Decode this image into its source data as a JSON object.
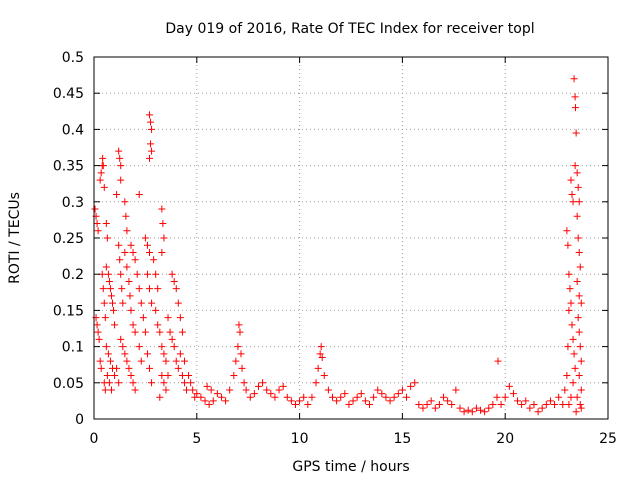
{
  "chart_data": {
    "type": "scatter",
    "title": "Day 019 of 2016, Rate Of TEC Index for receiver topl",
    "xlabel": "GPS time / hours",
    "ylabel": "ROTI / TECUs",
    "xlim": [
      0,
      25
    ],
    "ylim": [
      0,
      0.5
    ],
    "xticks": [
      0,
      5,
      10,
      15,
      20,
      25
    ],
    "yticks": [
      0,
      0.05,
      0.1,
      0.15,
      0.2,
      0.25,
      0.3,
      0.35,
      0.4,
      0.45,
      0.5
    ],
    "grid": true,
    "marker": "plus",
    "color": "#ff0000",
    "series": [
      {
        "name": "ROTI",
        "points": [
          [
            0.05,
            0.29
          ],
          [
            0.1,
            0.28
          ],
          [
            0.15,
            0.27
          ],
          [
            0.2,
            0.26
          ],
          [
            0.1,
            0.14
          ],
          [
            0.15,
            0.13
          ],
          [
            0.2,
            0.12
          ],
          [
            0.25,
            0.11
          ],
          [
            0.3,
            0.08
          ],
          [
            0.35,
            0.07
          ],
          [
            0.3,
            0.33
          ],
          [
            0.35,
            0.34
          ],
          [
            0.4,
            0.35
          ],
          [
            0.42,
            0.36
          ],
          [
            0.45,
            0.35
          ],
          [
            0.5,
            0.32
          ],
          [
            0.4,
            0.2
          ],
          [
            0.45,
            0.18
          ],
          [
            0.5,
            0.16
          ],
          [
            0.55,
            0.14
          ],
          [
            0.6,
            0.27
          ],
          [
            0.65,
            0.25
          ],
          [
            0.6,
            0.21
          ],
          [
            0.7,
            0.2
          ],
          [
            0.75,
            0.19
          ],
          [
            0.8,
            0.18
          ],
          [
            0.85,
            0.17
          ],
          [
            0.9,
            0.16
          ],
          [
            0.95,
            0.15
          ],
          [
            1.0,
            0.13
          ],
          [
            0.6,
            0.1
          ],
          [
            0.7,
            0.09
          ],
          [
            0.8,
            0.08
          ],
          [
            0.9,
            0.07
          ],
          [
            1.0,
            0.06
          ],
          [
            0.5,
            0.05
          ],
          [
            0.55,
            0.04
          ],
          [
            0.65,
            0.06
          ],
          [
            0.75,
            0.05
          ],
          [
            0.85,
            0.04
          ],
          [
            1.2,
            0.37
          ],
          [
            1.25,
            0.36
          ],
          [
            1.3,
            0.35
          ],
          [
            1.3,
            0.33
          ],
          [
            1.1,
            0.31
          ],
          [
            1.2,
            0.24
          ],
          [
            1.25,
            0.22
          ],
          [
            1.3,
            0.2
          ],
          [
            1.35,
            0.18
          ],
          [
            1.4,
            0.16
          ],
          [
            1.5,
            0.3
          ],
          [
            1.55,
            0.28
          ],
          [
            1.6,
            0.26
          ],
          [
            1.5,
            0.23
          ],
          [
            1.6,
            0.21
          ],
          [
            1.7,
            0.19
          ],
          [
            1.75,
            0.17
          ],
          [
            1.8,
            0.15
          ],
          [
            1.9,
            0.13
          ],
          [
            2.0,
            0.12
          ],
          [
            1.3,
            0.11
          ],
          [
            1.4,
            0.1
          ],
          [
            1.5,
            0.09
          ],
          [
            1.6,
            0.08
          ],
          [
            1.7,
            0.07
          ],
          [
            1.8,
            0.06
          ],
          [
            1.9,
            0.05
          ],
          [
            2.0,
            0.04
          ],
          [
            1.2,
            0.05
          ],
          [
            1.1,
            0.07
          ],
          [
            1.8,
            0.24
          ],
          [
            1.9,
            0.23
          ],
          [
            2.0,
            0.22
          ],
          [
            2.1,
            0.2
          ],
          [
            2.2,
            0.18
          ],
          [
            2.3,
            0.16
          ],
          [
            2.4,
            0.14
          ],
          [
            2.5,
            0.12
          ],
          [
            2.2,
            0.1
          ],
          [
            2.3,
            0.08
          ],
          [
            2.2,
            0.31
          ],
          [
            2.5,
            0.25
          ],
          [
            2.6,
            0.24
          ],
          [
            2.7,
            0.23
          ],
          [
            2.6,
            0.2
          ],
          [
            2.7,
            0.18
          ],
          [
            2.8,
            0.16
          ],
          [
            2.6,
            0.09
          ],
          [
            2.7,
            0.07
          ],
          [
            2.8,
            0.05
          ],
          [
            2.7,
            0.42
          ],
          [
            2.75,
            0.41
          ],
          [
            2.8,
            0.4
          ],
          [
            2.75,
            0.38
          ],
          [
            2.8,
            0.37
          ],
          [
            2.7,
            0.36
          ],
          [
            2.9,
            0.22
          ],
          [
            3.0,
            0.2
          ],
          [
            3.1,
            0.18
          ],
          [
            3.0,
            0.15
          ],
          [
            3.1,
            0.13
          ],
          [
            3.2,
            0.12
          ],
          [
            3.3,
            0.1
          ],
          [
            3.4,
            0.09
          ],
          [
            3.5,
            0.08
          ],
          [
            3.3,
            0.06
          ],
          [
            3.4,
            0.05
          ],
          [
            3.2,
            0.03
          ],
          [
            3.5,
            0.04
          ],
          [
            3.6,
            0.06
          ],
          [
            3.3,
            0.29
          ],
          [
            3.35,
            0.27
          ],
          [
            3.4,
            0.25
          ],
          [
            3.3,
            0.23
          ],
          [
            3.6,
            0.14
          ],
          [
            3.7,
            0.12
          ],
          [
            3.8,
            0.11
          ],
          [
            3.9,
            0.1
          ],
          [
            4.0,
            0.08
          ],
          [
            4.1,
            0.07
          ],
          [
            3.8,
            0.2
          ],
          [
            3.9,
            0.19
          ],
          [
            4.0,
            0.18
          ],
          [
            4.1,
            0.16
          ],
          [
            4.2,
            0.14
          ],
          [
            4.3,
            0.12
          ],
          [
            4.2,
            0.09
          ],
          [
            4.3,
            0.06
          ],
          [
            4.4,
            0.05
          ],
          [
            4.5,
            0.04
          ],
          [
            4.4,
            0.08
          ],
          [
            4.6,
            0.06
          ],
          [
            4.7,
            0.05
          ],
          [
            4.8,
            0.04
          ],
          [
            4.9,
            0.03
          ],
          [
            5.0,
            0.035
          ],
          [
            5.2,
            0.03
          ],
          [
            5.4,
            0.025
          ],
          [
            5.6,
            0.02
          ],
          [
            5.8,
            0.025
          ],
          [
            5.5,
            0.045
          ],
          [
            5.7,
            0.04
          ],
          [
            6.0,
            0.035
          ],
          [
            6.2,
            0.03
          ],
          [
            6.4,
            0.025
          ],
          [
            6.6,
            0.04
          ],
          [
            6.8,
            0.06
          ],
          [
            6.9,
            0.08
          ],
          [
            7.0,
            0.1
          ],
          [
            7.05,
            0.13
          ],
          [
            7.1,
            0.12
          ],
          [
            7.15,
            0.09
          ],
          [
            7.2,
            0.07
          ],
          [
            7.3,
            0.05
          ],
          [
            7.4,
            0.04
          ],
          [
            7.6,
            0.03
          ],
          [
            7.8,
            0.035
          ],
          [
            8.0,
            0.045
          ],
          [
            8.2,
            0.05
          ],
          [
            8.4,
            0.04
          ],
          [
            8.6,
            0.035
          ],
          [
            8.8,
            0.03
          ],
          [
            9.0,
            0.04
          ],
          [
            9.2,
            0.045
          ],
          [
            9.4,
            0.03
          ],
          [
            9.6,
            0.025
          ],
          [
            9.8,
            0.02
          ],
          [
            10.0,
            0.025
          ],
          [
            10.2,
            0.03
          ],
          [
            10.4,
            0.02
          ],
          [
            10.6,
            0.03
          ],
          [
            10.8,
            0.05
          ],
          [
            10.9,
            0.07
          ],
          [
            11.0,
            0.09
          ],
          [
            11.05,
            0.1
          ],
          [
            11.1,
            0.085
          ],
          [
            11.2,
            0.06
          ],
          [
            11.4,
            0.04
          ],
          [
            11.6,
            0.03
          ],
          [
            11.8,
            0.025
          ],
          [
            12.0,
            0.03
          ],
          [
            12.2,
            0.035
          ],
          [
            12.4,
            0.02
          ],
          [
            12.6,
            0.025
          ],
          [
            12.8,
            0.03
          ],
          [
            13.0,
            0.035
          ],
          [
            13.2,
            0.025
          ],
          [
            13.4,
            0.02
          ],
          [
            13.6,
            0.03
          ],
          [
            13.8,
            0.04
          ],
          [
            14.0,
            0.035
          ],
          [
            14.2,
            0.03
          ],
          [
            14.4,
            0.025
          ],
          [
            14.6,
            0.03
          ],
          [
            14.8,
            0.035
          ],
          [
            15.0,
            0.04
          ],
          [
            15.2,
            0.03
          ],
          [
            15.4,
            0.045
          ],
          [
            15.6,
            0.05
          ],
          [
            15.8,
            0.02
          ],
          [
            16.0,
            0.015
          ],
          [
            16.2,
            0.02
          ],
          [
            16.4,
            0.025
          ],
          [
            16.6,
            0.015
          ],
          [
            16.8,
            0.02
          ],
          [
            17.0,
            0.03
          ],
          [
            17.2,
            0.025
          ],
          [
            17.4,
            0.02
          ],
          [
            17.6,
            0.04
          ],
          [
            17.8,
            0.015
          ],
          [
            18.0,
            0.01
          ],
          [
            18.2,
            0.012
          ],
          [
            18.4,
            0.01
          ],
          [
            18.6,
            0.015
          ],
          [
            18.8,
            0.012
          ],
          [
            19.0,
            0.01
          ],
          [
            19.2,
            0.015
          ],
          [
            19.4,
            0.02
          ],
          [
            19.6,
            0.03
          ],
          [
            19.65,
            0.08
          ],
          [
            19.8,
            0.02
          ],
          [
            20.0,
            0.03
          ],
          [
            20.2,
            0.045
          ],
          [
            20.4,
            0.035
          ],
          [
            20.6,
            0.025
          ],
          [
            20.8,
            0.02
          ],
          [
            21.0,
            0.025
          ],
          [
            21.2,
            0.015
          ],
          [
            21.4,
            0.02
          ],
          [
            21.6,
            0.01
          ],
          [
            21.8,
            0.015
          ],
          [
            22.0,
            0.02
          ],
          [
            22.2,
            0.025
          ],
          [
            22.4,
            0.02
          ],
          [
            22.6,
            0.03
          ],
          [
            22.8,
            0.02
          ],
          [
            22.9,
            0.04
          ],
          [
            23.0,
            0.06
          ],
          [
            23.05,
            0.1
          ],
          [
            23.1,
            0.15
          ],
          [
            23.0,
            0.26
          ],
          [
            23.05,
            0.24
          ],
          [
            23.1,
            0.2
          ],
          [
            23.15,
            0.18
          ],
          [
            23.2,
            0.16
          ],
          [
            23.25,
            0.13
          ],
          [
            23.3,
            0.11
          ],
          [
            23.2,
            0.33
          ],
          [
            23.25,
            0.31
          ],
          [
            23.3,
            0.3
          ],
          [
            23.35,
            0.47
          ],
          [
            23.4,
            0.445
          ],
          [
            23.42,
            0.43
          ],
          [
            23.45,
            0.395
          ],
          [
            23.4,
            0.35
          ],
          [
            23.5,
            0.34
          ],
          [
            23.55,
            0.32
          ],
          [
            23.6,
            0.3
          ],
          [
            23.5,
            0.28
          ],
          [
            23.55,
            0.25
          ],
          [
            23.6,
            0.23
          ],
          [
            23.65,
            0.21
          ],
          [
            23.5,
            0.19
          ],
          [
            23.6,
            0.17
          ],
          [
            23.7,
            0.16
          ],
          [
            23.55,
            0.14
          ],
          [
            23.6,
            0.12
          ],
          [
            23.65,
            0.1
          ],
          [
            23.7,
            0.08
          ],
          [
            23.6,
            0.06
          ],
          [
            23.7,
            0.04
          ],
          [
            23.5,
            0.03
          ],
          [
            23.4,
            0.07
          ],
          [
            23.3,
            0.05
          ],
          [
            23.2,
            0.03
          ],
          [
            23.1,
            0.02
          ],
          [
            23.65,
            0.02
          ],
          [
            23.7,
            0.015
          ],
          [
            23.45,
            0.01
          ],
          [
            23.35,
            0.09
          ]
        ]
      }
    ]
  }
}
